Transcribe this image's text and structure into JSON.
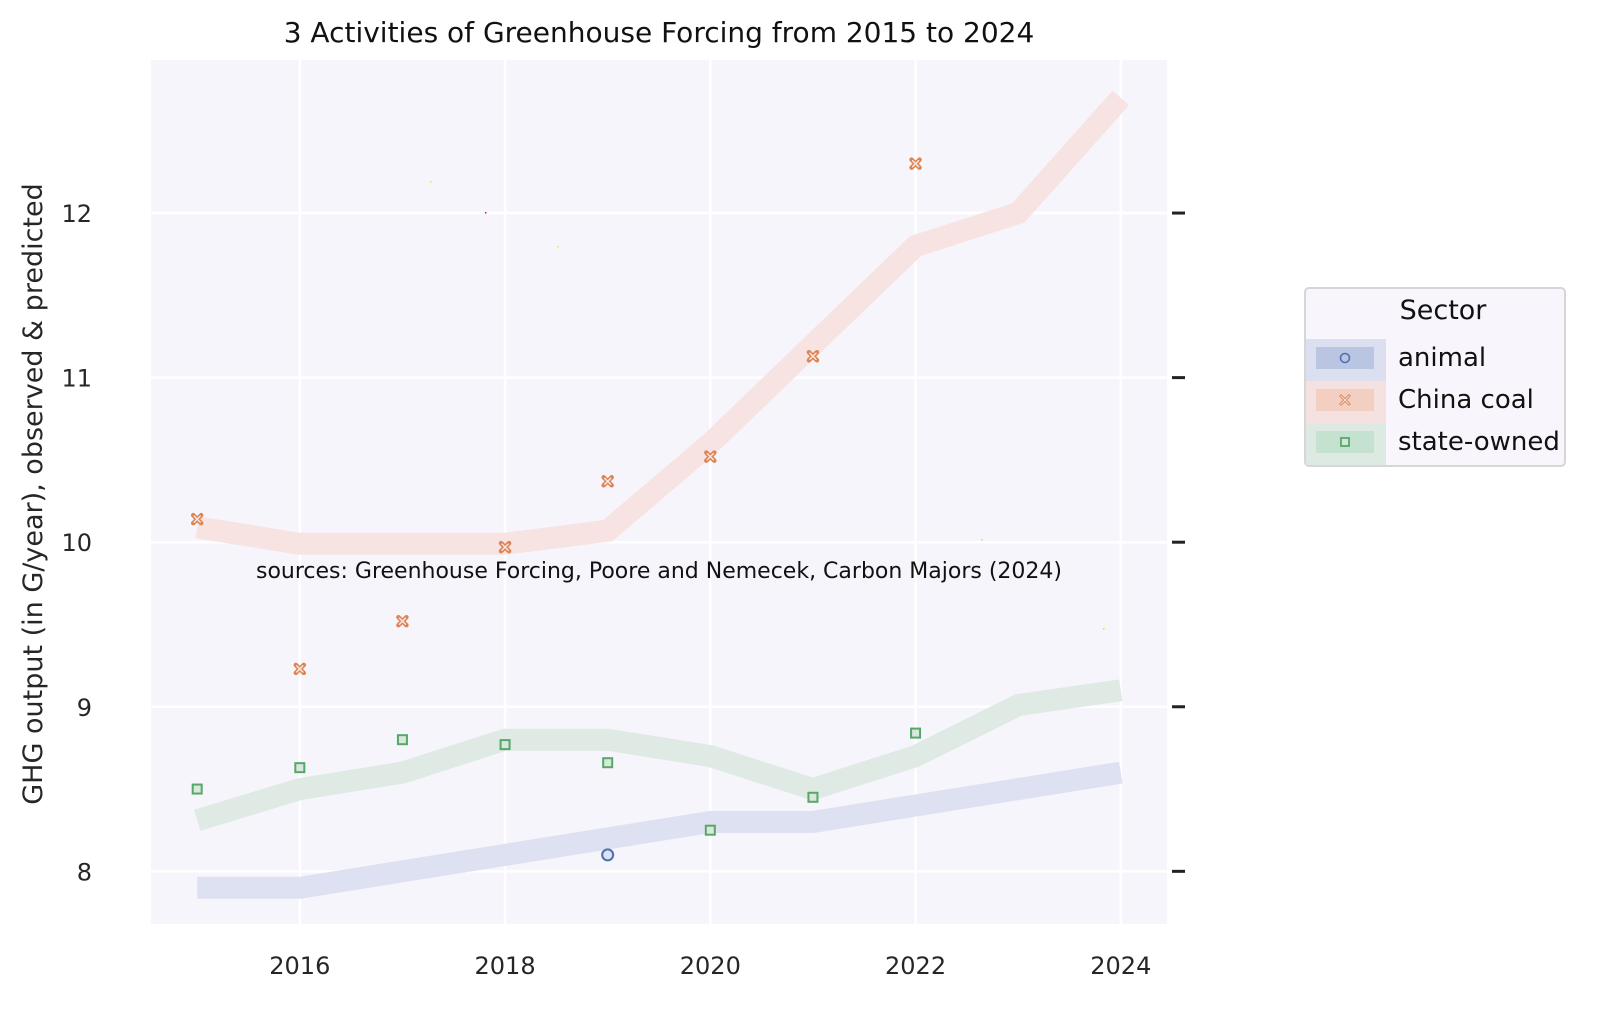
{
  "chart_data": {
    "type": "line",
    "title": "3 Activities of Greenhouse Forcing from 2015 to 2024",
    "xlabel": "",
    "ylabel": "GHG output (in G/year), observed & predicted",
    "annotation": "sources: Greenhouse Forcing, Poore and Nemecek, Carbon Majors (2024)",
    "x": [
      2015,
      2016,
      2017,
      2018,
      2019,
      2020,
      2021,
      2022,
      2023,
      2024
    ],
    "xlim": [
      2014.55,
      2024.45
    ],
    "ylim": [
      7.68,
      12.93
    ],
    "xticks": [
      2016,
      2018,
      2020,
      2022,
      2024
    ],
    "xtick_labels": [
      "2016",
      "2018",
      "2020",
      "2022",
      "2024"
    ],
    "yticks": [
      8,
      9,
      10,
      11,
      12
    ],
    "ytick_labels": [
      "8",
      "9",
      "10",
      "11",
      "12"
    ],
    "grid": true,
    "legend": {
      "title": "Sector",
      "placement": "right-outside"
    },
    "series": [
      {
        "name": "animal",
        "color": "#4c72b0",
        "band_color": "#dcdff0",
        "marker": "circle",
        "predicted": [
          7.9,
          7.9,
          8.0,
          8.1,
          8.2,
          8.3,
          8.3,
          8.4,
          8.5,
          8.6
        ],
        "observed": [
          null,
          null,
          null,
          null,
          8.1,
          null,
          null,
          null,
          null,
          null
        ]
      },
      {
        "name": "China coal",
        "color": "#dd8452",
        "band_color": "#f5e2e0",
        "marker": "x",
        "predicted": [
          10.09,
          9.99,
          9.99,
          9.99,
          10.07,
          10.6,
          11.2,
          11.8,
          12.0,
          12.7
        ],
        "observed": [
          10.14,
          9.23,
          9.52,
          9.97,
          10.37,
          10.52,
          11.13,
          12.3,
          null,
          null
        ]
      },
      {
        "name": "state-owned",
        "color": "#55a868",
        "band_color": "#dde9e3",
        "marker": "square",
        "predicted": [
          8.31,
          8.5,
          8.6,
          8.8,
          8.8,
          8.7,
          8.5,
          8.7,
          9.01,
          9.1
        ],
        "observed": [
          8.5,
          8.63,
          8.8,
          8.77,
          8.66,
          8.25,
          8.45,
          8.84,
          null,
          null
        ]
      }
    ]
  },
  "theme": {
    "plot_background": "#f7f5fc",
    "grid_color": "#ffffff",
    "legend_swatch_colors": [
      "#bac5e3",
      "#f2cfc0",
      "#c5e1cf"
    ],
    "legend_row_colors": [
      "#dcdff0",
      "#f5e2e0",
      "#dde9e3"
    ]
  }
}
